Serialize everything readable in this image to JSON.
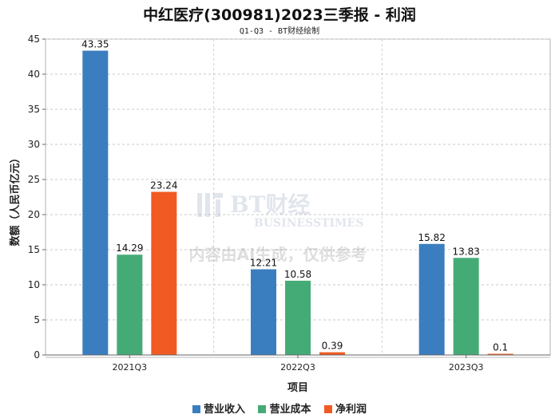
{
  "chart_data": {
    "type": "bar",
    "title": "中红医疗(300981)2023三季报 - 利润",
    "subtitle": "Q1-Q3 - BT财经绘制",
    "xlabel": "项目",
    "ylabel": "数额（人民币亿元）",
    "ylim": [
      0,
      45
    ],
    "yticks": [
      0,
      5,
      10,
      15,
      20,
      25,
      30,
      35,
      40,
      45
    ],
    "grid": true,
    "legend_position": "bottom",
    "categories": [
      "2021Q3",
      "2022Q3",
      "2023Q3"
    ],
    "series": [
      {
        "name": "营业收入",
        "color": "#3a7ebf",
        "values": [
          43.35,
          12.21,
          15.82
        ],
        "labels": [
          "43.35",
          "12.21",
          "15.82"
        ]
      },
      {
        "name": "营业成本",
        "color": "#45ab76",
        "values": [
          14.29,
          10.58,
          13.83
        ],
        "labels": [
          "14.29",
          "10.58",
          "13.83"
        ]
      },
      {
        "name": "净利润",
        "color": "#f15a22",
        "values": [
          23.24,
          0.39,
          0.1
        ],
        "labels": [
          "23.24",
          "0.39",
          "0.1"
        ]
      }
    ],
    "watermark": {
      "logo_text": "BT财经",
      "logo_sub": "BUSINESSTIMES",
      "notice": "内容由AI生成，仅供参考"
    }
  }
}
